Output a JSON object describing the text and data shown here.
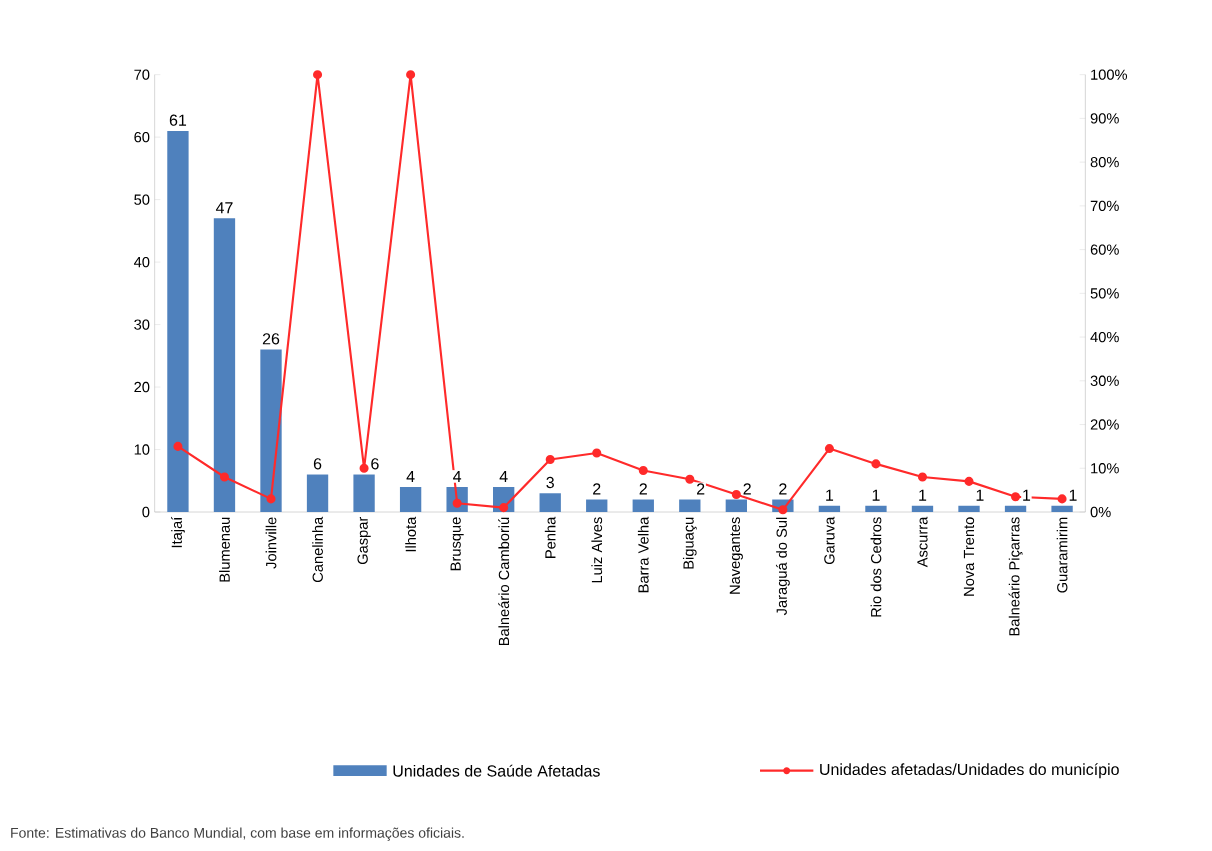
{
  "chart_data": {
    "type": "bar",
    "categories": [
      "Itajaí",
      "Blumenau",
      "Joinville",
      "Canelinha",
      "Gaspar",
      "Ilhota",
      "Brusque",
      "Balneário Camboriú",
      "Penha",
      "Luiz Alves",
      "Barra Velha",
      "Biguaçu",
      "Navegantes",
      "Jaraguá do Sul",
      "Garuva",
      "Rio dos Cedros",
      "Ascurra",
      "Nova Trento",
      "Balneário Piçarras",
      "Guaramirim"
    ],
    "series": [
      {
        "name": "Unidades de Saúde Afetadas",
        "color": "#4f81bd",
        "values": [
          61,
          47,
          26,
          6,
          6,
          4,
          4,
          4,
          3,
          2,
          2,
          2,
          2,
          2,
          1,
          1,
          1,
          1,
          1,
          1
        ],
        "value_labels": [
          "61",
          "47",
          "26",
          "6",
          "6",
          "4",
          "4",
          "4",
          "3",
          "2",
          "2",
          "2",
          "2",
          "2",
          "1",
          "1",
          "1",
          "1",
          "1",
          "1"
        ]
      },
      {
        "name": "Unidades afetadas/Unidades do município",
        "type": "line",
        "axis": "y2",
        "color": "#ff2a2a",
        "values": [
          15,
          8,
          3,
          100,
          10,
          100,
          2,
          1,
          12,
          13.5,
          9.5,
          7.5,
          4,
          0.5,
          14.5,
          11,
          8,
          7,
          3.5,
          3
        ]
      }
    ],
    "ylim": [
      0,
      70
    ],
    "yticks": [
      0,
      10,
      20,
      30,
      40,
      50,
      60,
      70
    ],
    "y2lim": [
      0,
      100
    ],
    "y2ticks": [
      {
        "value": 0,
        "label": "0%"
      },
      {
        "value": 10,
        "label": "10%"
      },
      {
        "value": 20,
        "label": "20%"
      },
      {
        "value": 30,
        "label": "30%"
      },
      {
        "value": 40,
        "label": "40%"
      },
      {
        "value": 50,
        "label": "50%"
      },
      {
        "value": 60,
        "label": "60%"
      },
      {
        "value": 70,
        "label": "70%"
      },
      {
        "value": 80,
        "label": "80%"
      },
      {
        "value": 90,
        "label": "90%"
      },
      {
        "value": 100,
        "label": "100%"
      }
    ],
    "marker": "circle",
    "legend": "bottom",
    "annotations": [
      "Fonte: Estimativas do Banco Mundial, com base em informações oficiais."
    ]
  }
}
